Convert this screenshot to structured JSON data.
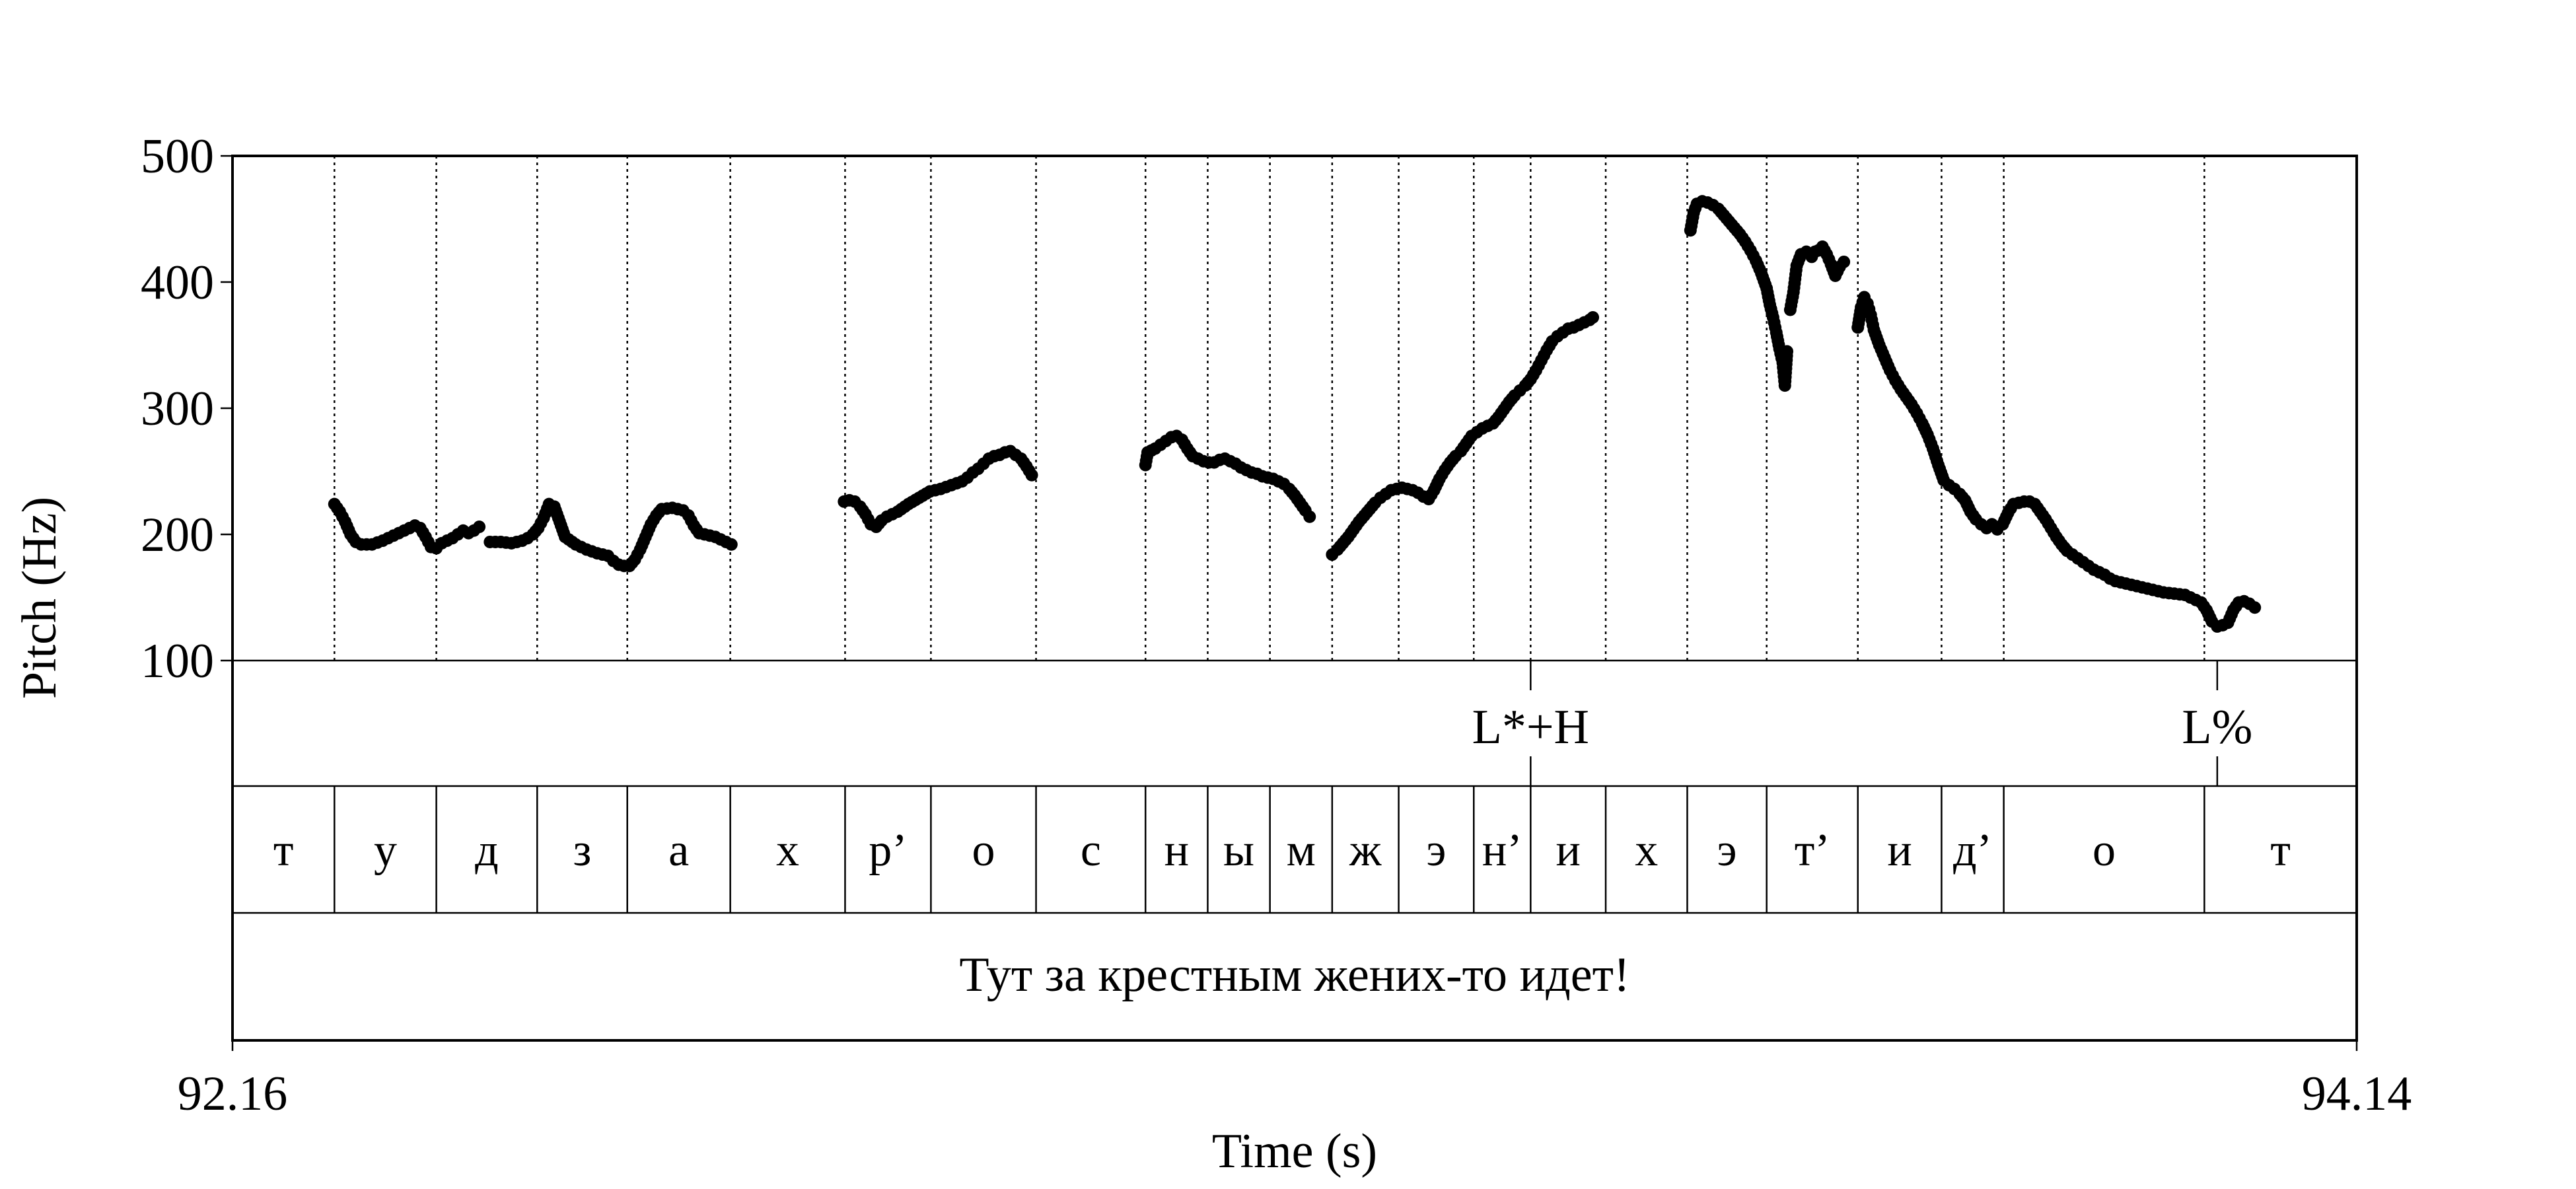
{
  "chart_data": {
    "type": "scatter",
    "ylabel": "Pitch (Hz)",
    "xlabel": "Time (s)",
    "xlim": [
      92.16,
      94.14
    ],
    "ylim": [
      100,
      500
    ],
    "yticks": [
      "500",
      "400",
      "300",
      "200",
      "100"
    ],
    "xtick_labels": [
      "92.16",
      "94.14"
    ],
    "tone_tier": [
      {
        "label": "L*+H",
        "t": 93.37
      },
      {
        "label": "L%",
        "t": 94.01
      }
    ],
    "segments": [
      {
        "label": "т",
        "start": 92.16,
        "end": 92.255
      },
      {
        "label": "у",
        "start": 92.255,
        "end": 92.35
      },
      {
        "label": "д",
        "start": 92.35,
        "end": 92.444
      },
      {
        "label": "з",
        "start": 92.444,
        "end": 92.528
      },
      {
        "label": "а",
        "start": 92.528,
        "end": 92.624
      },
      {
        "label": "х",
        "start": 92.624,
        "end": 92.731
      },
      {
        "label": "р’",
        "start": 92.731,
        "end": 92.811
      },
      {
        "label": "о",
        "start": 92.811,
        "end": 92.909
      },
      {
        "label": "с",
        "start": 92.909,
        "end": 93.011
      },
      {
        "label": "н",
        "start": 93.011,
        "end": 93.069
      },
      {
        "label": "ы",
        "start": 93.069,
        "end": 93.127
      },
      {
        "label": "м",
        "start": 93.127,
        "end": 93.185
      },
      {
        "label": "ж",
        "start": 93.185,
        "end": 93.247
      },
      {
        "label": "э",
        "start": 93.247,
        "end": 93.317
      },
      {
        "label": "н’",
        "start": 93.317,
        "end": 93.37
      },
      {
        "label": "и",
        "start": 93.37,
        "end": 93.44
      },
      {
        "label": "х",
        "start": 93.44,
        "end": 93.516
      },
      {
        "label": "э",
        "start": 93.516,
        "end": 93.59
      },
      {
        "label": "т’",
        "start": 93.59,
        "end": 93.675
      },
      {
        "label": "и",
        "start": 93.675,
        "end": 93.753
      },
      {
        "label": "д’",
        "start": 93.753,
        "end": 93.811
      },
      {
        "label": "о",
        "start": 93.811,
        "end": 93.998
      },
      {
        "label": "т",
        "start": 93.998,
        "end": 94.14
      }
    ],
    "sentence": "Тут за крестным жених-то идет!",
    "pitch_contours": [
      [
        [
          92.255,
          224
        ],
        [
          92.26,
          218
        ],
        [
          92.265,
          210
        ],
        [
          92.27,
          200
        ],
        [
          92.275,
          194
        ],
        [
          92.28,
          192
        ],
        [
          92.29,
          192
        ],
        [
          92.3,
          195
        ],
        [
          92.31,
          199
        ],
        [
          92.32,
          203
        ],
        [
          92.33,
          207
        ],
        [
          92.335,
          205
        ],
        [
          92.34,
          198
        ],
        [
          92.345,
          190
        ],
        [
          92.35,
          189
        ],
        [
          92.355,
          193
        ],
        [
          92.36,
          195
        ],
        [
          92.365,
          197
        ],
        [
          92.37,
          200
        ],
        [
          92.375,
          203
        ],
        [
          92.38,
          201
        ],
        [
          92.385,
          203
        ],
        [
          92.39,
          206
        ]
      ],
      [
        [
          92.4,
          194
        ],
        [
          92.41,
          194
        ],
        [
          92.42,
          193
        ],
        [
          92.43,
          195
        ],
        [
          92.435,
          197
        ],
        [
          92.44,
          200
        ],
        [
          92.445,
          205
        ],
        [
          92.45,
          213
        ],
        [
          92.455,
          224
        ],
        [
          92.46,
          222
        ],
        [
          92.465,
          210
        ],
        [
          92.47,
          198
        ],
        [
          92.48,
          192
        ],
        [
          92.49,
          188
        ],
        [
          92.5,
          185
        ],
        [
          92.51,
          183
        ],
        [
          92.515,
          179
        ],
        [
          92.52,
          176
        ],
        [
          92.525,
          175
        ],
        [
          92.53,
          175
        ],
        [
          92.535,
          180
        ],
        [
          92.54,
          188
        ],
        [
          92.545,
          198
        ],
        [
          92.55,
          208
        ],
        [
          92.555,
          215
        ],
        [
          92.56,
          220
        ],
        [
          92.57,
          221
        ],
        [
          92.58,
          219
        ],
        [
          92.585,
          215
        ],
        [
          92.59,
          207
        ],
        [
          92.595,
          201
        ],
        [
          92.6,
          200
        ],
        [
          92.61,
          198
        ],
        [
          92.615,
          196
        ],
        [
          92.62,
          194
        ],
        [
          92.625,
          192
        ]
      ],
      [
        [
          92.73,
          226
        ],
        [
          92.735,
          227
        ],
        [
          92.74,
          226
        ],
        [
          92.745,
          222
        ],
        [
          92.75,
          216
        ],
        [
          92.755,
          208
        ],
        [
          92.76,
          206
        ],
        [
          92.765,
          211
        ],
        [
          92.77,
          214
        ],
        [
          92.78,
          218
        ],
        [
          92.79,
          224
        ],
        [
          92.8,
          229
        ],
        [
          92.81,
          234
        ],
        [
          92.82,
          236
        ],
        [
          92.83,
          239
        ],
        [
          92.84,
          242
        ],
        [
          92.845,
          245
        ],
        [
          92.85,
          249
        ],
        [
          92.855,
          252
        ],
        [
          92.86,
          256
        ],
        [
          92.865,
          260
        ],
        [
          92.87,
          262
        ],
        [
          92.875,
          263
        ],
        [
          92.88,
          265
        ],
        [
          92.885,
          266
        ],
        [
          92.89,
          263
        ],
        [
          92.895,
          260
        ],
        [
          92.9,
          254
        ],
        [
          92.905,
          247
        ]
      ],
      [
        [
          93.011,
          255
        ],
        [
          93.013,
          265
        ],
        [
          93.02,
          268
        ],
        [
          93.025,
          271
        ],
        [
          93.03,
          274
        ],
        [
          93.035,
          277
        ],
        [
          93.04,
          278
        ],
        [
          93.045,
          275
        ],
        [
          93.05,
          268
        ],
        [
          93.055,
          262
        ],
        [
          93.06,
          260
        ],
        [
          93.065,
          258
        ],
        [
          93.07,
          257
        ],
        [
          93.075,
          257
        ],
        [
          93.08,
          259
        ],
        [
          93.085,
          260
        ],
        [
          93.09,
          258
        ],
        [
          93.095,
          256
        ],
        [
          93.1,
          253
        ],
        [
          93.105,
          251
        ],
        [
          93.11,
          249
        ],
        [
          93.115,
          248
        ],
        [
          93.12,
          246
        ],
        [
          93.125,
          245
        ],
        [
          93.13,
          244
        ],
        [
          93.135,
          242
        ],
        [
          93.14,
          240
        ],
        [
          93.145,
          236
        ],
        [
          93.15,
          231
        ],
        [
          93.155,
          225
        ],
        [
          93.16,
          219
        ],
        [
          93.164,
          214
        ]
      ],
      [
        [
          93.185,
          184
        ],
        [
          93.19,
          188
        ],
        [
          93.195,
          193
        ],
        [
          93.2,
          198
        ],
        [
          93.205,
          204
        ],
        [
          93.21,
          210
        ],
        [
          93.215,
          215
        ],
        [
          93.22,
          220
        ],
        [
          93.225,
          225
        ],
        [
          93.23,
          229
        ],
        [
          93.235,
          232
        ],
        [
          93.24,
          235
        ],
        [
          93.245,
          236
        ],
        [
          93.25,
          237
        ],
        [
          93.255,
          236
        ],
        [
          93.26,
          235
        ],
        [
          93.265,
          233
        ],
        [
          93.27,
          230
        ],
        [
          93.275,
          228
        ],
        [
          93.28,
          235
        ],
        [
          93.285,
          244
        ],
        [
          93.29,
          251
        ],
        [
          93.295,
          257
        ],
        [
          93.3,
          262
        ],
        [
          93.305,
          266
        ],
        [
          93.31,
          272
        ],
        [
          93.315,
          278
        ],
        [
          93.32,
          281
        ],
        [
          93.325,
          284
        ],
        [
          93.33,
          286
        ],
        [
          93.335,
          288
        ],
        [
          93.34,
          293
        ],
        [
          93.345,
          299
        ],
        [
          93.35,
          305
        ],
        [
          93.355,
          310
        ],
        [
          93.36,
          314
        ],
        [
          93.365,
          318
        ],
        [
          93.37,
          323
        ],
        [
          93.375,
          330
        ],
        [
          93.38,
          338
        ],
        [
          93.385,
          346
        ],
        [
          93.39,
          353
        ],
        [
          93.395,
          357
        ],
        [
          93.4,
          360
        ],
        [
          93.405,
          363
        ],
        [
          93.41,
          364
        ],
        [
          93.415,
          366
        ],
        [
          93.42,
          368
        ],
        [
          93.425,
          370
        ],
        [
          93.428,
          372
        ]
      ],
      [
        [
          93.519,
          441
        ],
        [
          93.522,
          455
        ],
        [
          93.525,
          462
        ],
        [
          93.53,
          464
        ],
        [
          93.535,
          463
        ],
        [
          93.54,
          461
        ],
        [
          93.545,
          458
        ],
        [
          93.55,
          453
        ],
        [
          93.555,
          448
        ],
        [
          93.56,
          443
        ],
        [
          93.565,
          438
        ],
        [
          93.57,
          432
        ],
        [
          93.575,
          425
        ],
        [
          93.58,
          417
        ],
        [
          93.585,
          407
        ],
        [
          93.59,
          395
        ],
        [
          93.593,
          382
        ],
        [
          93.596,
          372
        ],
        [
          93.599,
          360
        ],
        [
          93.602,
          347
        ],
        [
          93.605,
          336
        ],
        [
          93.607,
          318
        ],
        [
          93.609,
          345
        ]
      ],
      [
        [
          93.612,
          378
        ],
        [
          93.615,
          392
        ],
        [
          93.618,
          413
        ],
        [
          93.622,
          422
        ],
        [
          93.627,
          424
        ],
        [
          93.632,
          420
        ],
        [
          93.635,
          424
        ],
        [
          93.638,
          425
        ],
        [
          93.642,
          428
        ],
        [
          93.646,
          422
        ],
        [
          93.65,
          414
        ],
        [
          93.654,
          405
        ],
        [
          93.658,
          412
        ],
        [
          93.662,
          416
        ]
      ],
      [
        [
          93.675,
          364
        ],
        [
          93.678,
          380
        ],
        [
          93.681,
          388
        ],
        [
          93.684,
          383
        ],
        [
          93.687,
          374
        ],
        [
          93.69,
          362
        ],
        [
          93.695,
          350
        ],
        [
          93.7,
          340
        ],
        [
          93.705,
          330
        ],
        [
          93.71,
          322
        ],
        [
          93.715,
          315
        ],
        [
          93.72,
          309
        ],
        [
          93.725,
          303
        ],
        [
          93.73,
          296
        ],
        [
          93.735,
          288
        ],
        [
          93.74,
          279
        ],
        [
          93.745,
          268
        ],
        [
          93.75,
          255
        ],
        [
          93.755,
          243
        ],
        [
          93.76,
          239
        ],
        [
          93.765,
          236
        ],
        [
          93.77,
          232
        ],
        [
          93.775,
          227
        ],
        [
          93.78,
          218
        ],
        [
          93.785,
          212
        ],
        [
          93.79,
          208
        ],
        [
          93.795,
          205
        ],
        [
          93.8,
          208
        ],
        [
          93.805,
          204
        ],
        [
          93.81,
          208
        ],
        [
          93.815,
          217
        ],
        [
          93.82,
          224
        ],
        [
          93.825,
          225
        ],
        [
          93.83,
          226
        ],
        [
          93.835,
          226
        ],
        [
          93.84,
          224
        ],
        [
          93.845,
          218
        ],
        [
          93.85,
          212
        ],
        [
          93.855,
          205
        ],
        [
          93.86,
          198
        ],
        [
          93.865,
          192
        ],
        [
          93.87,
          187
        ],
        [
          93.875,
          184
        ],
        [
          93.88,
          181
        ],
        [
          93.885,
          178
        ],
        [
          93.89,
          175
        ],
        [
          93.895,
          172
        ],
        [
          93.9,
          170
        ],
        [
          93.905,
          168
        ],
        [
          93.91,
          165
        ],
        [
          93.915,
          163
        ],
        [
          93.92,
          162
        ],
        [
          93.93,
          160
        ],
        [
          93.94,
          158
        ],
        [
          93.95,
          156
        ],
        [
          93.96,
          154
        ],
        [
          93.97,
          153
        ],
        [
          93.98,
          152
        ],
        [
          93.985,
          150
        ],
        [
          93.99,
          148
        ],
        [
          93.995,
          146
        ],
        [
          94.0,
          140
        ],
        [
          94.005,
          131
        ],
        [
          94.01,
          127
        ],
        [
          94.015,
          128
        ],
        [
          94.02,
          130
        ],
        [
          94.025,
          140
        ],
        [
          94.03,
          146
        ],
        [
          94.035,
          147
        ],
        [
          94.04,
          145
        ],
        [
          94.045,
          142
        ]
      ]
    ]
  }
}
